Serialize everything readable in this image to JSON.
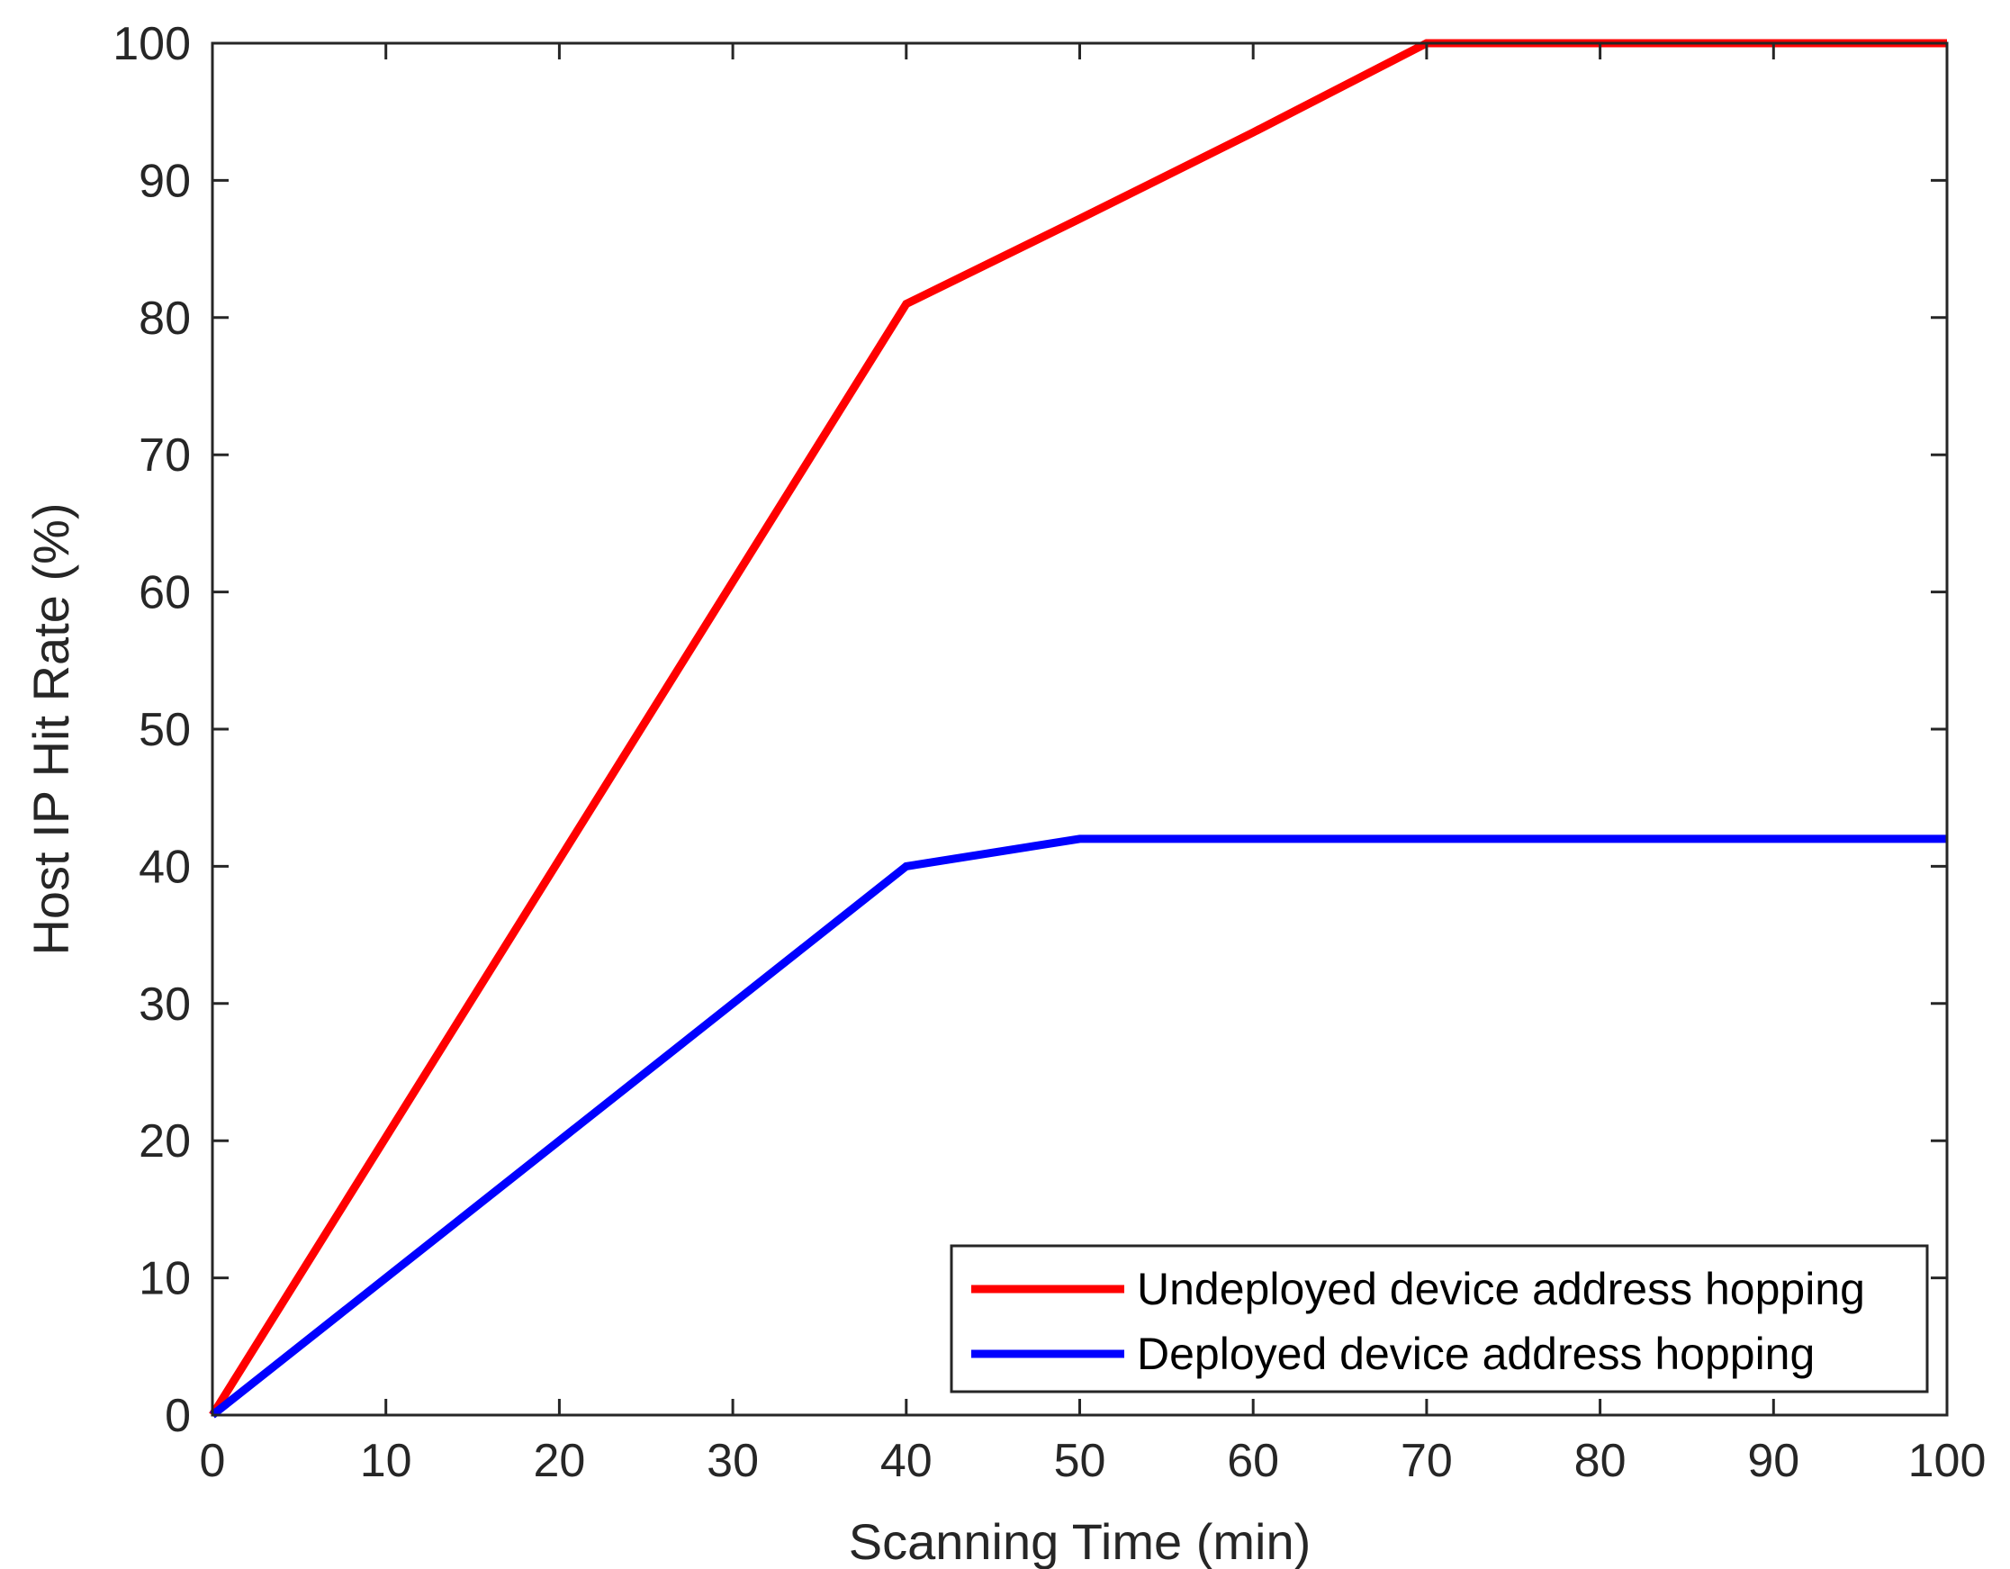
{
  "chart_data": {
    "type": "line",
    "xlabel": "Scanning Time (min)",
    "ylabel": "Host IP Hit Rate (%)",
    "xlim": [
      0,
      100
    ],
    "ylim": [
      0,
      100
    ],
    "x_ticks": [
      0,
      10,
      20,
      30,
      40,
      50,
      60,
      70,
      80,
      90,
      100
    ],
    "y_ticks": [
      0,
      10,
      20,
      30,
      40,
      50,
      60,
      70,
      80,
      90,
      100
    ],
    "grid": false,
    "legend_position": "bottom-right",
    "series": [
      {
        "name": "Undeployed device address hopping",
        "color": "#ff0000",
        "x": [
          0,
          40,
          50,
          60,
          70,
          80,
          90,
          100
        ],
        "y": [
          0,
          81,
          87.2,
          93.5,
          100,
          100,
          100,
          100
        ]
      },
      {
        "name": "Deployed device address hopping",
        "color": "#0000ff",
        "x": [
          0,
          40,
          50,
          60,
          70,
          80,
          90,
          100
        ],
        "y": [
          0,
          40,
          42,
          42,
          42,
          42,
          42,
          42
        ]
      }
    ]
  }
}
